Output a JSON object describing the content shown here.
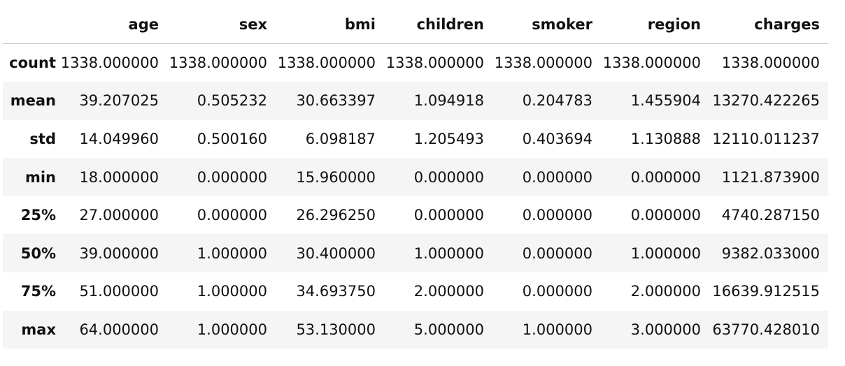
{
  "table": {
    "columns": [
      "",
      "age",
      "sex",
      "bmi",
      "children",
      "smoker",
      "region",
      "charges"
    ],
    "rows": [
      {
        "index": "count",
        "cells": [
          "1338.000000",
          "1338.000000",
          "1338.000000",
          "1338.000000",
          "1338.000000",
          "1338.000000",
          "1338.000000"
        ]
      },
      {
        "index": "mean",
        "cells": [
          "39.207025",
          "0.505232",
          "30.663397",
          "1.094918",
          "0.204783",
          "1.455904",
          "13270.422265"
        ]
      },
      {
        "index": "std",
        "cells": [
          "14.049960",
          "0.500160",
          "6.098187",
          "1.205493",
          "0.403694",
          "1.130888",
          "12110.011237"
        ]
      },
      {
        "index": "min",
        "cells": [
          "18.000000",
          "0.000000",
          "15.960000",
          "0.000000",
          "0.000000",
          "0.000000",
          "1121.873900"
        ]
      },
      {
        "index": "25%",
        "cells": [
          "27.000000",
          "0.000000",
          "26.296250",
          "0.000000",
          "0.000000",
          "0.000000",
          "4740.287150"
        ]
      },
      {
        "index": "50%",
        "cells": [
          "39.000000",
          "1.000000",
          "30.400000",
          "1.000000",
          "0.000000",
          "1.000000",
          "9382.033000"
        ]
      },
      {
        "index": "75%",
        "cells": [
          "51.000000",
          "1.000000",
          "34.693750",
          "2.000000",
          "0.000000",
          "2.000000",
          "16639.912515"
        ]
      },
      {
        "index": "max",
        "cells": [
          "64.000000",
          "1.000000",
          "53.130000",
          "5.000000",
          "1.000000",
          "3.000000",
          "63770.428010"
        ]
      }
    ]
  },
  "colors": {
    "text": "#111111",
    "stripe": "#f5f5f5",
    "header_rule": "#c8c8c8",
    "background": "#ffffff"
  }
}
